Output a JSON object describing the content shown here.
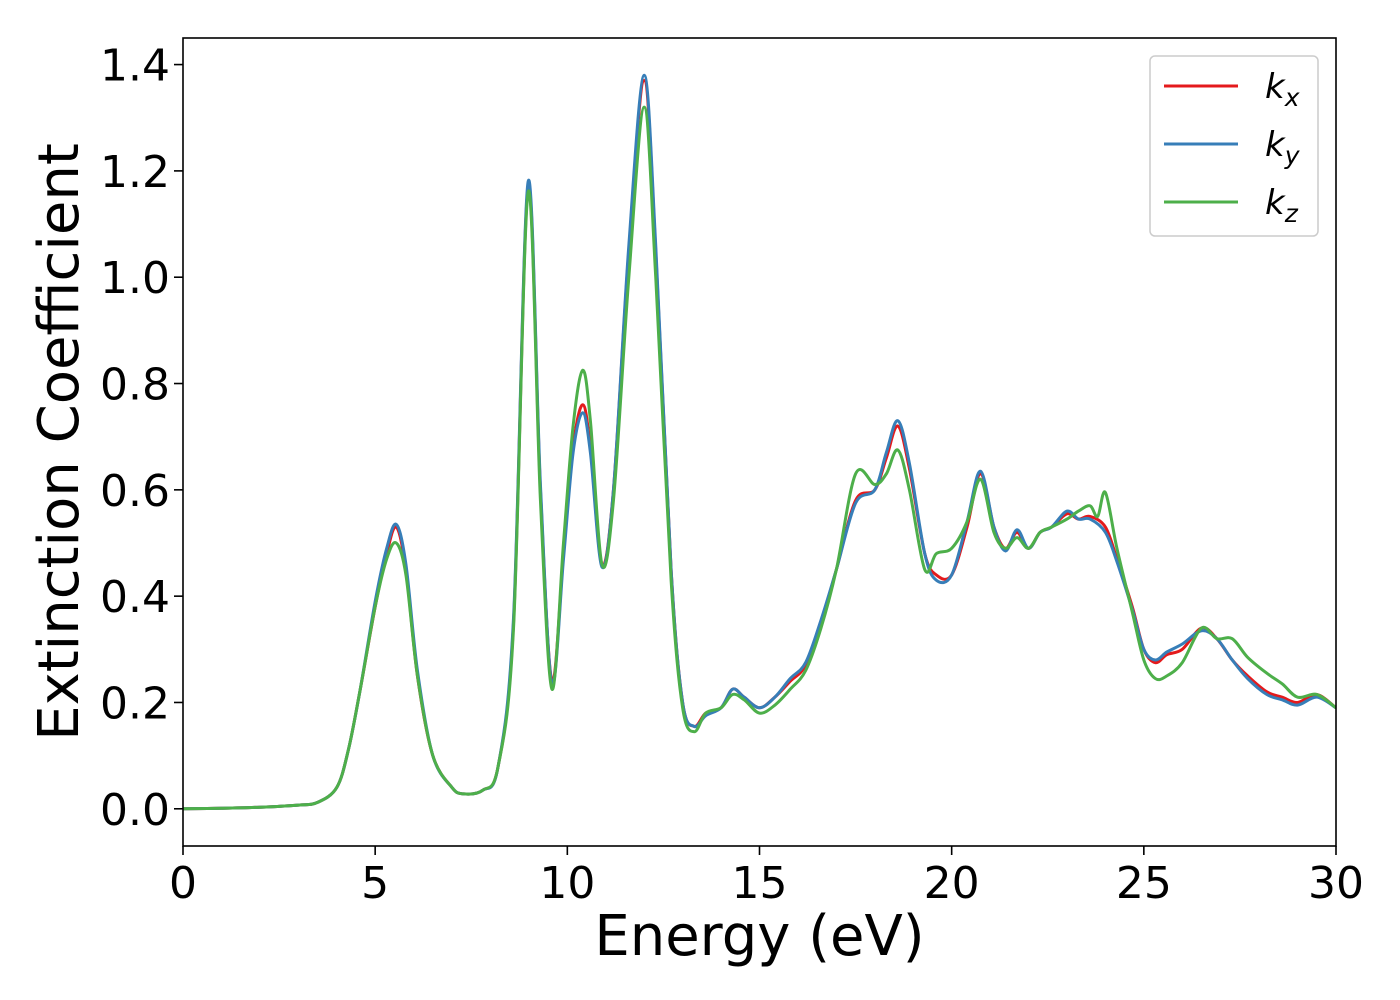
{
  "chart_data": {
    "type": "line",
    "title": "",
    "xlabel": "Energy (eV)",
    "ylabel": "Extinction Coefficient",
    "xlim": [
      0,
      30
    ],
    "ylim": [
      -0.07,
      1.45
    ],
    "xticks": [
      "0",
      "5",
      "10",
      "15",
      "20",
      "25",
      "30"
    ],
    "yticks": [
      "0.0",
      "0.2",
      "0.4",
      "0.6",
      "0.8",
      "1.0",
      "1.2",
      "1.4"
    ],
    "xtick_values": [
      0,
      5,
      10,
      15,
      20,
      25,
      30
    ],
    "ytick_values": [
      0,
      0.2,
      0.4,
      0.6,
      0.8,
      1.0,
      1.2,
      1.4
    ],
    "grid": false,
    "legend_position": "top-right",
    "colors": {
      "kx": "#e41a1c",
      "ky": "#377eb8",
      "kz": "#4daf4a"
    },
    "series": [
      {
        "name": "kx",
        "legend_main": "k",
        "legend_sub": "x",
        "color": "#e41a1c",
        "x": [
          0,
          1,
          2,
          3,
          3.5,
          4,
          4.3,
          4.6,
          5,
          5.3,
          5.55,
          5.8,
          6.1,
          6.5,
          7,
          7.3,
          7.8,
          8.2,
          8.6,
          8.98,
          9.3,
          9.6,
          9.9,
          10.15,
          10.4,
          10.6,
          10.9,
          11.2,
          11.6,
          12.0,
          12.3,
          12.7,
          13.0,
          13.3,
          13.6,
          14.0,
          14.3,
          14.6,
          15.0,
          15.4,
          15.8,
          16.2,
          16.6,
          17.0,
          17.5,
          18.0,
          18.3,
          18.6,
          18.9,
          19.3,
          19.6,
          20.0,
          20.4,
          20.75,
          21.1,
          21.4,
          21.7,
          22.0,
          22.3,
          22.6,
          23.0,
          23.3,
          23.6,
          24.0,
          24.3,
          24.7,
          25.0,
          25.3,
          25.6,
          26.0,
          26.5,
          26.9,
          27.3,
          27.7,
          28.2,
          28.6,
          29.0,
          29.5,
          30.0
        ],
        "values": [
          0.0,
          0.001,
          0.003,
          0.007,
          0.012,
          0.04,
          0.11,
          0.22,
          0.38,
          0.48,
          0.53,
          0.45,
          0.25,
          0.1,
          0.04,
          0.028,
          0.035,
          0.08,
          0.35,
          1.17,
          0.6,
          0.24,
          0.48,
          0.68,
          0.76,
          0.68,
          0.46,
          0.6,
          1.05,
          1.37,
          1.05,
          0.45,
          0.2,
          0.155,
          0.18,
          0.19,
          0.225,
          0.21,
          0.19,
          0.21,
          0.24,
          0.27,
          0.35,
          0.45,
          0.58,
          0.6,
          0.66,
          0.72,
          0.64,
          0.48,
          0.44,
          0.44,
          0.53,
          0.63,
          0.53,
          0.49,
          0.52,
          0.49,
          0.52,
          0.53,
          0.555,
          0.545,
          0.55,
          0.53,
          0.47,
          0.38,
          0.3,
          0.275,
          0.29,
          0.3,
          0.34,
          0.32,
          0.28,
          0.25,
          0.22,
          0.21,
          0.2,
          0.215,
          0.19
        ]
      },
      {
        "name": "ky",
        "legend_main": "k",
        "legend_sub": "y",
        "color": "#377eb8",
        "x": [
          0,
          1,
          2,
          3,
          3.5,
          4,
          4.3,
          4.6,
          5,
          5.3,
          5.55,
          5.8,
          6.1,
          6.5,
          7,
          7.3,
          7.8,
          8.2,
          8.6,
          8.98,
          9.3,
          9.6,
          9.9,
          10.15,
          10.4,
          10.6,
          10.9,
          11.2,
          11.6,
          12.0,
          12.3,
          12.7,
          13.0,
          13.3,
          13.6,
          14.0,
          14.3,
          14.6,
          15.0,
          15.4,
          15.8,
          16.2,
          16.6,
          17.0,
          17.5,
          18.0,
          18.3,
          18.6,
          18.9,
          19.3,
          19.6,
          20.0,
          20.4,
          20.75,
          21.1,
          21.4,
          21.7,
          22.0,
          22.3,
          22.6,
          23.0,
          23.3,
          23.6,
          24.0,
          24.3,
          24.7,
          25.0,
          25.3,
          25.6,
          26.0,
          26.5,
          26.9,
          27.3,
          27.7,
          28.2,
          28.6,
          29.0,
          29.5,
          30.0
        ],
        "values": [
          0.0,
          0.001,
          0.003,
          0.007,
          0.012,
          0.04,
          0.11,
          0.22,
          0.39,
          0.49,
          0.535,
          0.46,
          0.26,
          0.1,
          0.04,
          0.028,
          0.035,
          0.08,
          0.36,
          1.18,
          0.61,
          0.235,
          0.47,
          0.67,
          0.745,
          0.67,
          0.455,
          0.6,
          1.06,
          1.38,
          1.06,
          0.45,
          0.2,
          0.155,
          0.175,
          0.19,
          0.225,
          0.21,
          0.19,
          0.21,
          0.245,
          0.275,
          0.355,
          0.45,
          0.575,
          0.6,
          0.67,
          0.73,
          0.65,
          0.48,
          0.43,
          0.44,
          0.54,
          0.635,
          0.53,
          0.485,
          0.525,
          0.49,
          0.52,
          0.53,
          0.56,
          0.545,
          0.545,
          0.52,
          0.465,
          0.375,
          0.3,
          0.28,
          0.295,
          0.31,
          0.335,
          0.32,
          0.28,
          0.245,
          0.215,
          0.205,
          0.195,
          0.21,
          0.19
        ]
      },
      {
        "name": "kz",
        "legend_main": "k",
        "legend_sub": "z",
        "color": "#4daf4a",
        "x": [
          0,
          1,
          2,
          3,
          3.5,
          4,
          4.3,
          4.6,
          5,
          5.3,
          5.55,
          5.8,
          6.1,
          6.5,
          7,
          7.3,
          7.8,
          8.2,
          8.6,
          8.98,
          9.3,
          9.6,
          9.9,
          10.15,
          10.4,
          10.6,
          10.9,
          11.2,
          11.6,
          12.0,
          12.3,
          12.7,
          13.0,
          13.3,
          13.6,
          14.0,
          14.3,
          14.6,
          15.0,
          15.4,
          15.8,
          16.2,
          16.6,
          17.0,
          17.5,
          18.0,
          18.3,
          18.6,
          18.9,
          19.3,
          19.6,
          20.0,
          20.4,
          20.75,
          21.1,
          21.4,
          21.7,
          22.0,
          22.3,
          22.6,
          23.0,
          23.3,
          23.6,
          23.8,
          24.0,
          24.3,
          24.7,
          25.0,
          25.3,
          25.6,
          26.0,
          26.5,
          26.9,
          27.3,
          27.7,
          28.2,
          28.6,
          29.0,
          29.5,
          30.0
        ],
        "values": [
          0.0,
          0.001,
          0.003,
          0.007,
          0.012,
          0.04,
          0.11,
          0.22,
          0.38,
          0.47,
          0.5,
          0.44,
          0.25,
          0.1,
          0.04,
          0.028,
          0.035,
          0.08,
          0.34,
          1.16,
          0.58,
          0.225,
          0.5,
          0.72,
          0.825,
          0.73,
          0.46,
          0.58,
          1.0,
          1.32,
          1.0,
          0.43,
          0.19,
          0.145,
          0.18,
          0.19,
          0.215,
          0.205,
          0.18,
          0.195,
          0.225,
          0.26,
          0.34,
          0.45,
          0.63,
          0.61,
          0.63,
          0.675,
          0.6,
          0.45,
          0.48,
          0.49,
          0.54,
          0.62,
          0.52,
          0.49,
          0.51,
          0.49,
          0.52,
          0.53,
          0.545,
          0.56,
          0.57,
          0.55,
          0.595,
          0.49,
          0.37,
          0.28,
          0.245,
          0.25,
          0.275,
          0.34,
          0.32,
          0.32,
          0.285,
          0.255,
          0.235,
          0.21,
          0.215,
          0.19
        ]
      }
    ]
  }
}
